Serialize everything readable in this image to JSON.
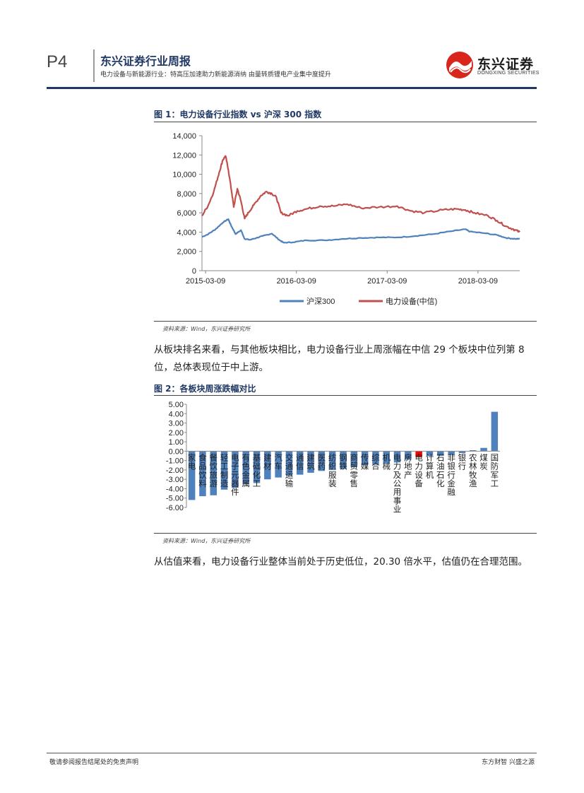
{
  "header": {
    "page_number": "P4",
    "report_title": "东兴证券行业周报",
    "report_subtitle": "电力设备与新能源行业：特高压加速助力新能源消纳 由量转质锂电产业集中度提升",
    "logo_cn": "东兴证券",
    "logo_en": "DONGXING SECURITIES"
  },
  "figure1": {
    "title": "图 1：电力设备行业指数 vs 沪深 300 指数",
    "source": "资料来源：Wind，东兴证券研究所"
  },
  "paragraph1": "从板块排名来看，与其他板块相比，电力设备行业上周涨幅在中信 29 个板块中位列第 8 位，总体表现位于中上游。",
  "figure2": {
    "title": "图 2：各板块周涨跌幅对比",
    "source": "资料来源：Wind，东兴证券研究所"
  },
  "paragraph2": "从估值来看，电力设备行业整体当前处于历史低位，20.30 倍水平，估值仍在合理范围。",
  "footer": {
    "left": "敬请参阅报告结尾处的免责声明",
    "right": "东方财智 兴盛之源"
  },
  "chart_data": [
    {
      "type": "line",
      "title": "图 1：电力设备行业指数 vs 沪深 300 指数",
      "xlabel": "",
      "ylabel": "",
      "x_ticks": [
        "2015-03-09",
        "2016-03-09",
        "2017-03-09",
        "2018-03-09"
      ],
      "y_ticks": [
        "0",
        "2,000",
        "4,000",
        "6,000",
        "8,000",
        "10,000",
        "12,000",
        "14,000"
      ],
      "ylim": [
        0,
        14000
      ],
      "xlim": [
        2015.15,
        2018.65
      ],
      "legend": "bottom",
      "series": [
        {
          "name": "沪深300",
          "color": "#4f81bd",
          "points": [
            [
              2015.15,
              3500
            ],
            [
              2015.22,
              3800
            ],
            [
              2015.3,
              4300
            ],
            [
              2015.38,
              5000
            ],
            [
              2015.44,
              5350
            ],
            [
              2015.47,
              4700
            ],
            [
              2015.52,
              3800
            ],
            [
              2015.58,
              4200
            ],
            [
              2015.62,
              3300
            ],
            [
              2015.68,
              3200
            ],
            [
              2015.75,
              3400
            ],
            [
              2015.82,
              3600
            ],
            [
              2015.92,
              3850
            ],
            [
              2016.0,
              3200
            ],
            [
              2016.05,
              2900
            ],
            [
              2016.15,
              2950
            ],
            [
              2016.3,
              3150
            ],
            [
              2016.5,
              3150
            ],
            [
              2016.7,
              3300
            ],
            [
              2016.9,
              3400
            ],
            [
              2017.1,
              3450
            ],
            [
              2017.3,
              3450
            ],
            [
              2017.5,
              3600
            ],
            [
              2017.7,
              3800
            ],
            [
              2017.9,
              4100
            ],
            [
              2018.05,
              4300
            ],
            [
              2018.1,
              4050
            ],
            [
              2018.25,
              3900
            ],
            [
              2018.4,
              3700
            ],
            [
              2018.5,
              3400
            ],
            [
              2018.6,
              3300
            ],
            [
              2018.65,
              3300
            ]
          ]
        },
        {
          "name": "电力设备(中信)",
          "color": "#c0504d",
          "points": [
            [
              2015.15,
              5700
            ],
            [
              2015.22,
              6800
            ],
            [
              2015.28,
              8200
            ],
            [
              2015.34,
              10200
            ],
            [
              2015.38,
              11500
            ],
            [
              2015.41,
              11900
            ],
            [
              2015.44,
              10500
            ],
            [
              2015.48,
              8000
            ],
            [
              2015.5,
              6600
            ],
            [
              2015.54,
              8500
            ],
            [
              2015.58,
              7200
            ],
            [
              2015.62,
              5400
            ],
            [
              2015.66,
              6000
            ],
            [
              2015.72,
              6800
            ],
            [
              2015.8,
              7800
            ],
            [
              2015.86,
              8200
            ],
            [
              2015.92,
              8000
            ],
            [
              2015.97,
              7600
            ],
            [
              2016.02,
              6000
            ],
            [
              2016.1,
              5700
            ],
            [
              2016.2,
              6200
            ],
            [
              2016.3,
              6400
            ],
            [
              2016.45,
              6700
            ],
            [
              2016.6,
              6700
            ],
            [
              2016.75,
              6900
            ],
            [
              2016.9,
              6500
            ],
            [
              2017.1,
              6600
            ],
            [
              2017.3,
              6700
            ],
            [
              2017.45,
              6200
            ],
            [
              2017.6,
              6000
            ],
            [
              2017.8,
              6300
            ],
            [
              2017.95,
              6400
            ],
            [
              2018.05,
              6300
            ],
            [
              2018.15,
              6000
            ],
            [
              2018.3,
              5700
            ],
            [
              2018.4,
              5200
            ],
            [
              2018.5,
              4600
            ],
            [
              2018.58,
              4300
            ],
            [
              2018.65,
              4000
            ]
          ]
        }
      ]
    },
    {
      "type": "bar",
      "title": "图 2：各板块周涨跌幅对比",
      "xlabel": "",
      "ylabel": "",
      "ylim": [
        -6,
        5
      ],
      "y_ticks": [
        "5.00",
        "4.00",
        "3.00",
        "2.00",
        "1.00",
        "0.00",
        "-1.00",
        "-2.00",
        "-3.00",
        "-4.00",
        "-5.00",
        "-6.00"
      ],
      "highlight_category": "电力设备",
      "bar_color": "#4f81bd",
      "highlight_color": "#ff0000",
      "categories": [
        "家电",
        "食品饮料",
        "餐饮旅游",
        "轻工制造",
        "电子元器件",
        "有色金属",
        "基础化工",
        "建材",
        "汽车",
        "交通运输",
        "通信",
        "建筑",
        "医药",
        "纺织服装",
        "钢铁",
        "商贸零售",
        "传媒",
        "综合",
        "机械",
        "电力及公用事业",
        "房地产",
        "电力设备",
        "计算机",
        "石油石化",
        "非银行金融",
        "银行",
        "农林牧渔",
        "煤炭",
        "国防军工"
      ],
      "values": [
        -5.2,
        -4.8,
        -4.7,
        -4.1,
        -3.9,
        -3.5,
        -3.4,
        -3.0,
        -2.8,
        -2.6,
        -2.5,
        -2.3,
        -2.1,
        -2.0,
        -1.9,
        -1.7,
        -1.5,
        -1.4,
        -1.3,
        -1.2,
        -0.9,
        -0.6,
        -0.5,
        -0.5,
        -0.4,
        -0.2,
        0.1,
        0.35,
        4.2
      ]
    }
  ]
}
